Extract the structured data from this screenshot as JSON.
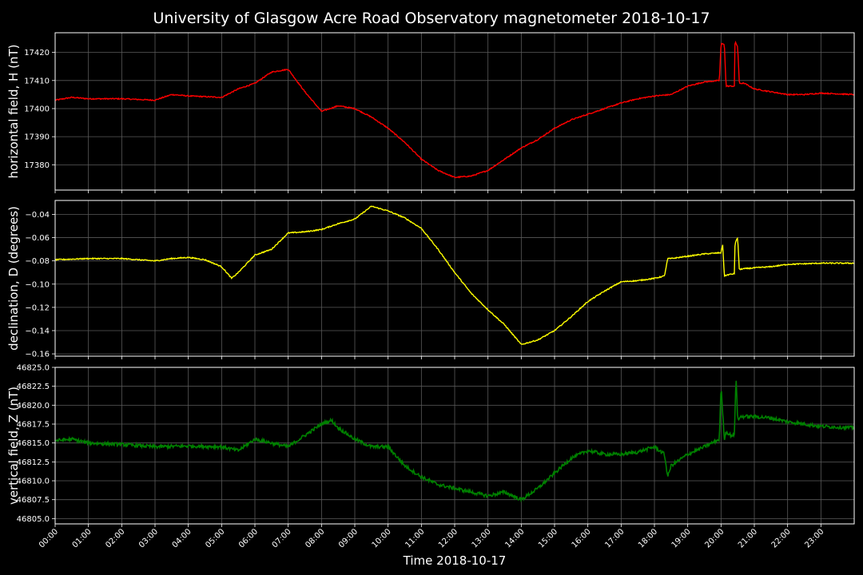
{
  "title": "University of Glasgow Acre Road Observatory magnetometer 2018-10-17",
  "xlabel": "Time 2018-10-17",
  "colors": {
    "background": "#000000",
    "grid": "#5a5a5a",
    "axes": "#ffffff",
    "text": "#ffffff"
  },
  "chart_data": [
    {
      "type": "line",
      "ylabel": "horizontal field, H (nT)",
      "color": "#ff0000",
      "ylim": [
        17371,
        17427
      ],
      "yticks": [
        17380,
        17390,
        17400,
        17410,
        17420
      ],
      "ytick_labels": [
        "17380",
        "17390",
        "17400",
        "17410",
        "17420"
      ],
      "grid": true,
      "x_hours": [
        0,
        0.5,
        1,
        2,
        3,
        3.5,
        4,
        5,
        5.5,
        6,
        6.5,
        7,
        7.5,
        8,
        8.5,
        9,
        9.5,
        10,
        10.5,
        11,
        11.5,
        12,
        12.5,
        13,
        13.5,
        14,
        14.5,
        15,
        15.5,
        16,
        16.5,
        17,
        17.5,
        18,
        18.5,
        19,
        19.5,
        19.95,
        20.0,
        20.1,
        20.15,
        20.2,
        20.4,
        20.42,
        20.5,
        20.55,
        20.6,
        20.7,
        21,
        21.5,
        22,
        22.5,
        23,
        24
      ],
      "values": [
        17403,
        17404,
        17403.5,
        17403.5,
        17403,
        17405,
        17404.5,
        17404,
        17407,
        17409,
        17413,
        17414,
        17406,
        17399,
        17401,
        17400,
        17397,
        17393,
        17388,
        17382,
        17378,
        17375.5,
        17376,
        17378,
        17382,
        17386,
        17389,
        17393,
        17396,
        17398,
        17400,
        17402,
        17403.5,
        17404.5,
        17405,
        17408,
        17409.5,
        17410,
        17423,
        17423,
        17408,
        17408,
        17408,
        17424,
        17422,
        17409,
        17409,
        17409,
        17407,
        17406,
        17405,
        17405,
        17405.5,
        17405
      ]
    },
    {
      "type": "line",
      "ylabel": "declination, D (degrees)",
      "color": "#ffff00",
      "ylim": [
        -0.162,
        -0.028
      ],
      "yticks": [
        -0.16,
        -0.14,
        -0.12,
        -0.1,
        -0.08,
        -0.06,
        -0.04
      ],
      "ytick_labels": [
        "−0.16",
        "−0.14",
        "−0.12",
        "−0.10",
        "−0.08",
        "−0.06",
        "−0.04"
      ],
      "grid": true,
      "x_hours": [
        0,
        1,
        2,
        3,
        3.5,
        4,
        4.5,
        5,
        5.3,
        5.5,
        6,
        6.5,
        7,
        7.5,
        8,
        8.5,
        9,
        9.5,
        10,
        10.5,
        11,
        11.5,
        12,
        12.5,
        13,
        13.5,
        14,
        14.5,
        15,
        15.5,
        16,
        16.5,
        17,
        17.5,
        18,
        18.3,
        18.4,
        18.5,
        19,
        19.5,
        20.0,
        20.05,
        20.1,
        20.2,
        20.4,
        20.42,
        20.5,
        20.55,
        20.6,
        21,
        21.5,
        22,
        23,
        24
      ],
      "values": [
        -0.079,
        -0.078,
        -0.078,
        -0.08,
        -0.078,
        -0.077,
        -0.079,
        -0.085,
        -0.095,
        -0.09,
        -0.075,
        -0.07,
        -0.056,
        -0.055,
        -0.053,
        -0.048,
        -0.044,
        -0.033,
        -0.037,
        -0.043,
        -0.052,
        -0.07,
        -0.09,
        -0.108,
        -0.122,
        -0.135,
        -0.152,
        -0.148,
        -0.14,
        -0.128,
        -0.115,
        -0.106,
        -0.098,
        -0.097,
        -0.095,
        -0.093,
        -0.078,
        -0.078,
        -0.076,
        -0.074,
        -0.073,
        -0.066,
        -0.093,
        -0.092,
        -0.091,
        -0.065,
        -0.06,
        -0.088,
        -0.087,
        -0.086,
        -0.085,
        -0.083,
        -0.082,
        -0.082
      ]
    },
    {
      "type": "line",
      "ylabel": "vertical field, Z (nT)",
      "color": "#008000",
      "ylim": [
        46804.3,
        46825.0
      ],
      "yticks": [
        46805.0,
        46807.5,
        46810.0,
        46812.5,
        46815.0,
        46817.5,
        46820.0,
        46822.5,
        46825.0
      ],
      "ytick_labels": [
        "46805.0",
        "46807.5",
        "46810.0",
        "46812.5",
        "46815.0",
        "46817.5",
        "46820.0",
        "46822.5",
        "46825.0"
      ],
      "grid": true,
      "x_hours": [
        0,
        0.5,
        1,
        2,
        3,
        4,
        5,
        5.5,
        6,
        6.5,
        7,
        7.5,
        8,
        8.3,
        8.5,
        9,
        9.5,
        10,
        10.5,
        11,
        11.5,
        12,
        12.5,
        13,
        13.5,
        14,
        14.5,
        15,
        15.5,
        16,
        16.5,
        17,
        17.5,
        18,
        18.3,
        18.4,
        18.5,
        19,
        19.5,
        19.95,
        20.0,
        20.1,
        20.15,
        20.3,
        20.4,
        20.45,
        20.5,
        20.6,
        21,
        21.5,
        22,
        22.5,
        23,
        24
      ],
      "values": [
        46815.3,
        46815.5,
        46815,
        46814.8,
        46814.5,
        46814.6,
        46814.5,
        46814,
        46815.5,
        46815,
        46814.5,
        46816,
        46817.5,
        46818,
        46817,
        46815.5,
        46814.5,
        46814.5,
        46812,
        46810.5,
        46809.5,
        46809,
        46808.5,
        46808,
        46808.5,
        46807.5,
        46809,
        46811,
        46813,
        46814,
        46813.5,
        46813.5,
        46813.8,
        46814.5,
        46813.5,
        46810.5,
        46812,
        46813.5,
        46814.5,
        46815.5,
        46822.5,
        46815.5,
        46816.5,
        46816,
        46816,
        46824,
        46818,
        46818.5,
        46818.5,
        46818.3,
        46817.8,
        46817.5,
        46817.2,
        46817
      ]
    }
  ],
  "xaxis": {
    "xlim_hours": [
      0,
      24
    ],
    "tick_labels": [
      "00:00",
      "01:00",
      "02:00",
      "03:00",
      "04:00",
      "05:00",
      "06:00",
      "07:00",
      "08:00",
      "09:00",
      "10:00",
      "11:00",
      "12:00",
      "13:00",
      "14:00",
      "15:00",
      "16:00",
      "17:00",
      "18:00",
      "19:00",
      "20:00",
      "21:00",
      "22:00",
      "23:00"
    ]
  }
}
